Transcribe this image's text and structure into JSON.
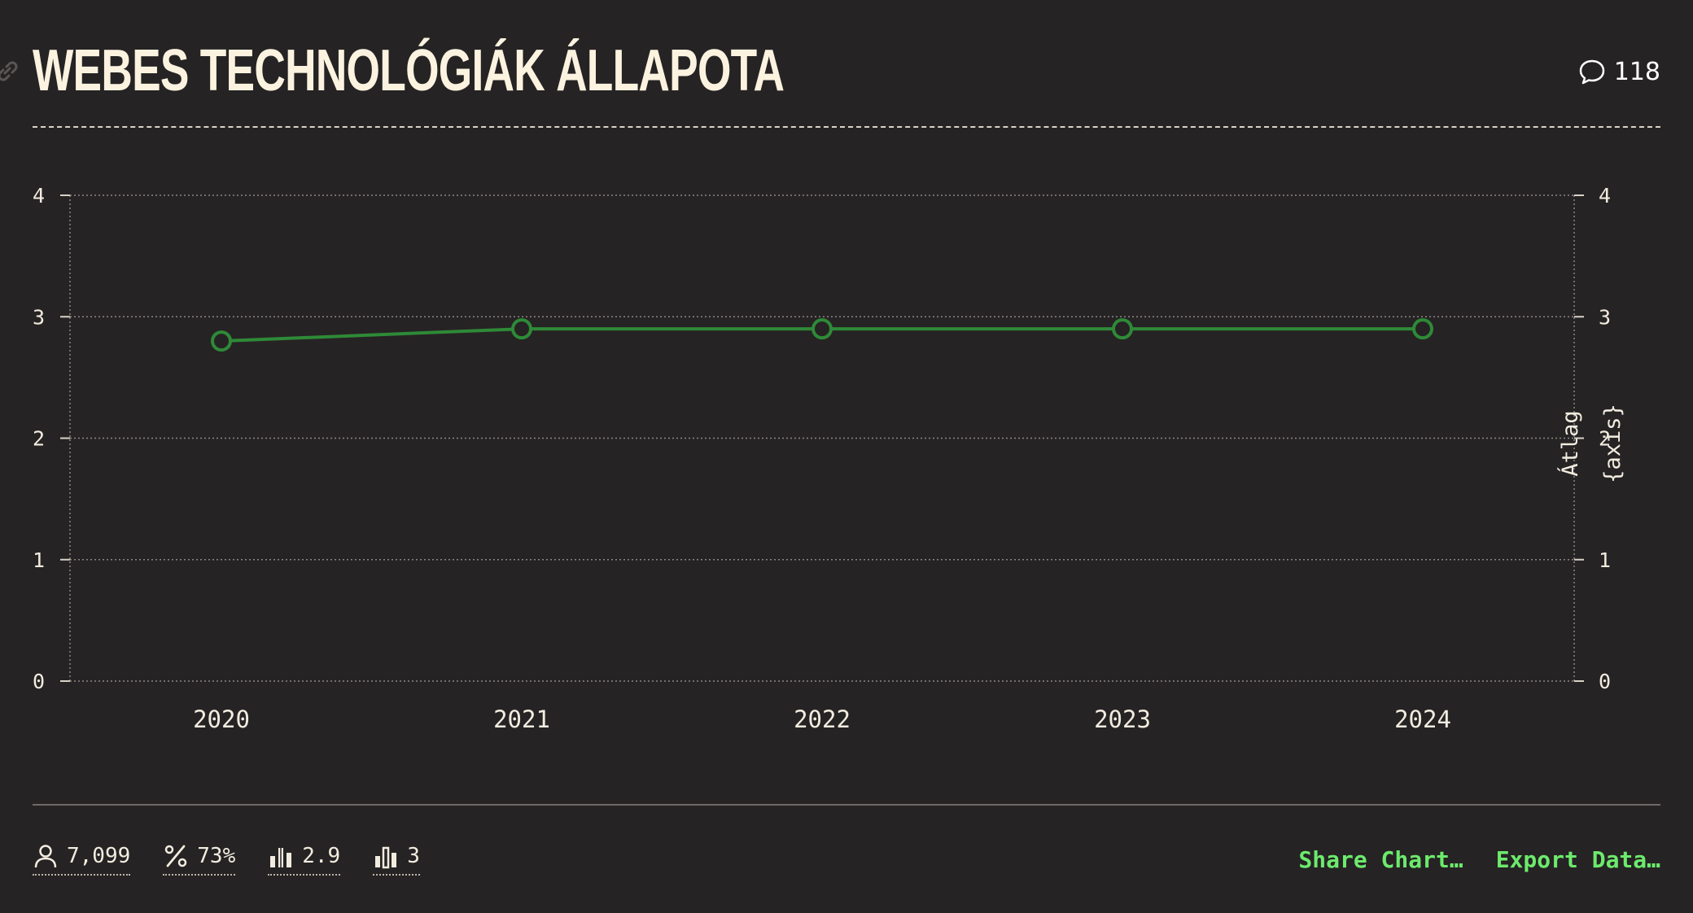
{
  "header": {
    "title": "WEBES TECHNOLÓGIÁK ÁLLAPOTA",
    "comment_count": "118"
  },
  "chart_data": {
    "type": "line",
    "title": "WEBES TECHNOLÓGIÁK ÁLLAPOTA",
    "x": [
      "2020",
      "2021",
      "2022",
      "2023",
      "2024"
    ],
    "series": [
      {
        "values": [
          2.8,
          2.9,
          2.9,
          2.9,
          2.9
        ]
      }
    ],
    "ylim": [
      0,
      4
    ],
    "yticks": [
      "0",
      "1",
      "2",
      "3",
      "4"
    ],
    "y2ticks": [
      "0",
      "1",
      "2",
      "3",
      "4"
    ],
    "y2label_line1": "Átlag",
    "y2label_line2": "{axis}",
    "grid": true,
    "colors": {
      "line": "#2e8a37",
      "grid": "#8a8684",
      "text": "#f2ece0"
    }
  },
  "footer": {
    "stats": [
      {
        "icon": "user-icon",
        "value": "7,099"
      },
      {
        "icon": "percent-icon",
        "value": "73%"
      },
      {
        "icon": "average-bars-icon",
        "value": "2.9"
      },
      {
        "icon": "median-bars-icon",
        "value": "3"
      }
    ],
    "share_label": "Share Chart…",
    "export_label": "Export Data…"
  }
}
